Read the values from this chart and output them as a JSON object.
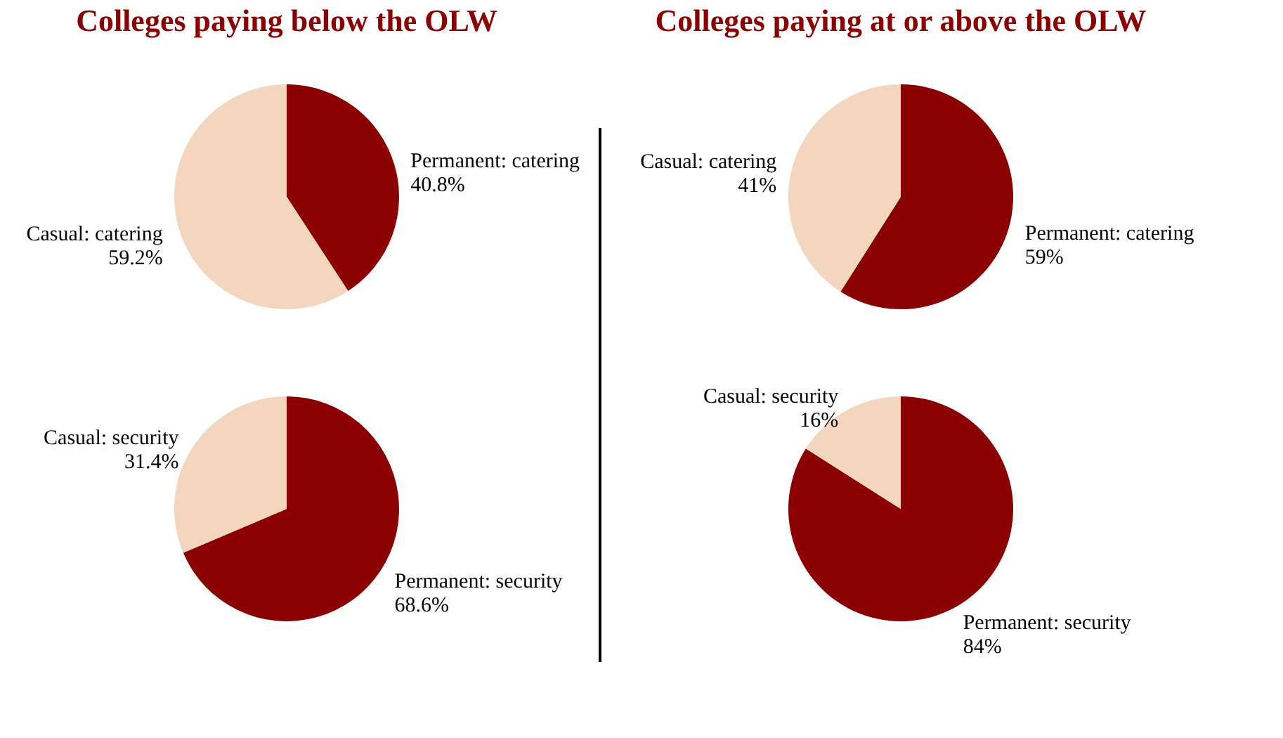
{
  "chart_data": [
    {
      "type": "pie",
      "title": "Colleges paying below the OLW",
      "categories": [
        "Permanent: catering",
        "Casual: catering"
      ],
      "values": [
        40.8,
        59.2
      ],
      "value_labels": [
        "40.8%",
        "59.2%"
      ],
      "colors": [
        "#8b0000",
        "#f3d6bd"
      ]
    },
    {
      "type": "pie",
      "title": "Colleges paying at or above the OLW",
      "categories": [
        "Permanent: catering",
        "Casual: catering"
      ],
      "values": [
        59,
        41
      ],
      "value_labels": [
        "59%",
        "41%"
      ],
      "colors": [
        "#8b0000",
        "#f3d6bd"
      ]
    },
    {
      "type": "pie",
      "categories": [
        "Permanent: security",
        "Casual: security"
      ],
      "values": [
        68.6,
        31.4
      ],
      "value_labels": [
        "68.6%",
        "31.4%"
      ],
      "colors": [
        "#8b0000",
        "#f3d6bd"
      ]
    },
    {
      "type": "pie",
      "categories": [
        "Permanent: security",
        "Casual: security"
      ],
      "values": [
        84,
        16
      ],
      "value_labels": [
        "84%",
        "16%"
      ],
      "colors": [
        "#8b0000",
        "#f3d6bd"
      ]
    }
  ]
}
